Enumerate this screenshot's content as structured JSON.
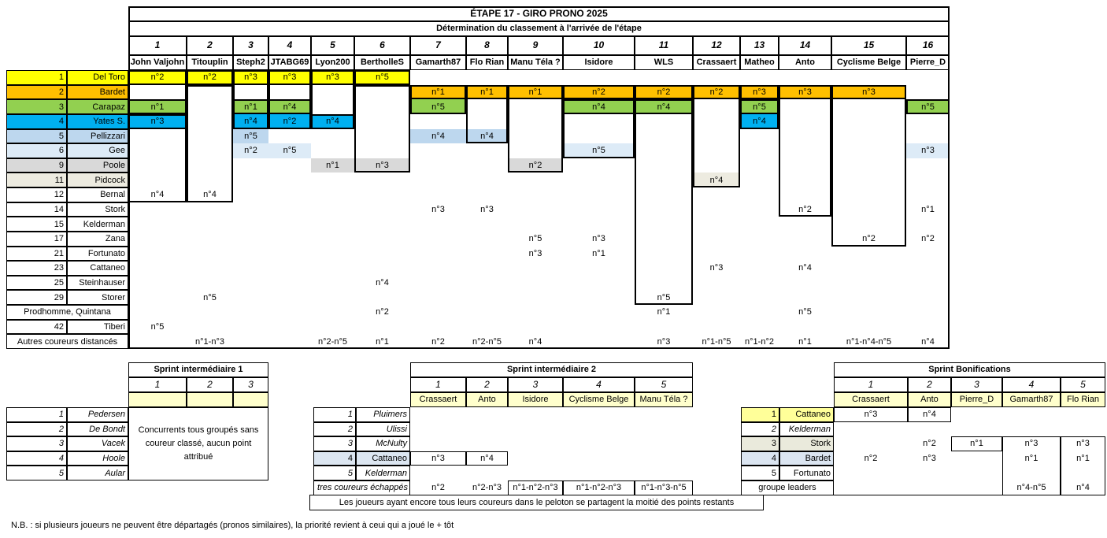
{
  "main": {
    "title": "ÉTAPE 17 - GIRO PRONO 2025",
    "subtitle": "Détermination du classement à l'arrivée de l'étape",
    "columns": [
      {
        "num": "1",
        "player": "John Valjohn"
      },
      {
        "num": "2",
        "player": "Titouplin"
      },
      {
        "num": "3",
        "player": "Steph2"
      },
      {
        "num": "4",
        "player": "JTABG69"
      },
      {
        "num": "5",
        "player": "Lyon200"
      },
      {
        "num": "6",
        "player": "BertholleS"
      },
      {
        "num": "7",
        "player": "Gamarth87"
      },
      {
        "num": "8",
        "player": "Flo Rian"
      },
      {
        "num": "9",
        "player": "Manu Téla ?"
      },
      {
        "num": "10",
        "player": "Isidore"
      },
      {
        "num": "11",
        "player": "WLS"
      },
      {
        "num": "12",
        "player": "Crassaert"
      },
      {
        "num": "13",
        "player": "Matheo"
      },
      {
        "num": "14",
        "player": "Anto"
      },
      {
        "num": "15",
        "player": "Cyclisme Belge"
      },
      {
        "num": "16",
        "player": "Pierre_D"
      }
    ],
    "riders": [
      {
        "rank": "1",
        "name": "Del Toro",
        "color": "#FFFF00"
      },
      {
        "rank": "2",
        "name": "Bardet",
        "color": "#FFC000"
      },
      {
        "rank": "3",
        "name": "Carapaz",
        "color": "#92D050"
      },
      {
        "rank": "4",
        "name": "Yates S.",
        "color": "#00B0F0"
      },
      {
        "rank": "5",
        "name": "Pellizzari",
        "color": "#BDD7EE"
      },
      {
        "rank": "6",
        "name": "Gee",
        "color": "#DDEBF7"
      },
      {
        "rank": "9",
        "name": "Poole",
        "color": "#D9D9D9"
      },
      {
        "rank": "11",
        "name": "Pidcock",
        "color": "#EDEBE0"
      },
      {
        "rank": "12",
        "name": "Bernal",
        "color": ""
      },
      {
        "rank": "14",
        "name": "Stork",
        "color": ""
      },
      {
        "rank": "15",
        "name": "Kelderman",
        "color": ""
      },
      {
        "rank": "17",
        "name": "Zana",
        "color": ""
      },
      {
        "rank": "21",
        "name": "Fortunato",
        "color": ""
      },
      {
        "rank": "23",
        "name": "Cattaneo",
        "color": ""
      },
      {
        "rank": "25",
        "name": "Steinhauser",
        "color": ""
      },
      {
        "rank": "29",
        "name": "Storer",
        "color": ""
      },
      {
        "rank": "",
        "name": "Prodhomme, Quintana",
        "color": "",
        "merged": true
      },
      {
        "rank": "42",
        "name": "Tiberi",
        "color": ""
      },
      {
        "rank": "",
        "name": "Autres coureurs distancés",
        "color": "",
        "merged": true
      }
    ],
    "picks": [
      {
        "c": 1,
        "r": 0,
        "v": "n°2"
      },
      {
        "c": 2,
        "r": 0,
        "v": "n°2"
      },
      {
        "c": 3,
        "r": 0,
        "v": "n°3"
      },
      {
        "c": 4,
        "r": 0,
        "v": "n°3"
      },
      {
        "c": 5,
        "r": 0,
        "v": "n°3"
      },
      {
        "c": 6,
        "r": 0,
        "v": "n°5"
      },
      {
        "c": 7,
        "r": 1,
        "v": "n°1"
      },
      {
        "c": 8,
        "r": 1,
        "v": "n°1"
      },
      {
        "c": 9,
        "r": 1,
        "v": "n°1"
      },
      {
        "c": 10,
        "r": 1,
        "v": "n°2"
      },
      {
        "c": 11,
        "r": 1,
        "v": "n°2"
      },
      {
        "c": 12,
        "r": 1,
        "v": "n°2"
      },
      {
        "c": 13,
        "r": 1,
        "v": "n°3"
      },
      {
        "c": 14,
        "r": 1,
        "v": "n°3"
      },
      {
        "c": 15,
        "r": 1,
        "v": "n°3"
      },
      {
        "c": 1,
        "r": 2,
        "v": "n°1"
      },
      {
        "c": 3,
        "r": 2,
        "v": "n°1"
      },
      {
        "c": 4,
        "r": 2,
        "v": "n°4"
      },
      {
        "c": 7,
        "r": 2,
        "v": "n°5"
      },
      {
        "c": 10,
        "r": 2,
        "v": "n°4"
      },
      {
        "c": 11,
        "r": 2,
        "v": "n°4"
      },
      {
        "c": 13,
        "r": 2,
        "v": "n°5"
      },
      {
        "c": 16,
        "r": 2,
        "v": "n°5"
      },
      {
        "c": 1,
        "r": 3,
        "v": "n°3"
      },
      {
        "c": 3,
        "r": 3,
        "v": "n°4"
      },
      {
        "c": 4,
        "r": 3,
        "v": "n°2"
      },
      {
        "c": 5,
        "r": 3,
        "v": "n°4"
      },
      {
        "c": 13,
        "r": 3,
        "v": "n°4"
      },
      {
        "c": 3,
        "r": 4,
        "v": "n°5"
      },
      {
        "c": 7,
        "r": 4,
        "v": "n°4"
      },
      {
        "c": 8,
        "r": 4,
        "v": "n°4"
      },
      {
        "c": 3,
        "r": 5,
        "v": "n°2"
      },
      {
        "c": 4,
        "r": 5,
        "v": "n°5"
      },
      {
        "c": 10,
        "r": 5,
        "v": "n°5"
      },
      {
        "c": 16,
        "r": 5,
        "v": "n°3"
      },
      {
        "c": 5,
        "r": 6,
        "v": "n°1"
      },
      {
        "c": 6,
        "r": 6,
        "v": "n°3"
      },
      {
        "c": 9,
        "r": 6,
        "v": "n°2"
      },
      {
        "c": 12,
        "r": 7,
        "v": "n°4"
      },
      {
        "c": 1,
        "r": 8,
        "v": "n°4"
      },
      {
        "c": 2,
        "r": 8,
        "v": "n°4"
      },
      {
        "c": 7,
        "r": 9,
        "v": "n°3"
      },
      {
        "c": 8,
        "r": 9,
        "v": "n°3"
      },
      {
        "c": 14,
        "r": 9,
        "v": "n°2"
      },
      {
        "c": 16,
        "r": 9,
        "v": "n°1"
      },
      {
        "c": 9,
        "r": 11,
        "v": "n°5"
      },
      {
        "c": 10,
        "r": 11,
        "v": "n°3"
      },
      {
        "c": 15,
        "r": 11,
        "v": "n°2"
      },
      {
        "c": 16,
        "r": 11,
        "v": "n°2"
      },
      {
        "c": 9,
        "r": 12,
        "v": "n°3"
      },
      {
        "c": 10,
        "r": 12,
        "v": "n°1"
      },
      {
        "c": 12,
        "r": 13,
        "v": "n°3"
      },
      {
        "c": 14,
        "r": 13,
        "v": "n°4"
      },
      {
        "c": 6,
        "r": 14,
        "v": "n°4"
      },
      {
        "c": 2,
        "r": 15,
        "v": "n°5"
      },
      {
        "c": 11,
        "r": 15,
        "v": "n°5"
      },
      {
        "c": 6,
        "r": 16,
        "v": "n°2"
      },
      {
        "c": 11,
        "r": 16,
        "v": "n°1"
      },
      {
        "c": 14,
        "r": 16,
        "v": "n°5"
      },
      {
        "c": 1,
        "r": 17,
        "v": "n°5"
      },
      {
        "c": 2,
        "r": 18,
        "v": "n°1-n°3"
      },
      {
        "c": 5,
        "r": 18,
        "v": "n°2-n°5"
      },
      {
        "c": 6,
        "r": 18,
        "v": "n°1"
      },
      {
        "c": 7,
        "r": 18,
        "v": "n°2"
      },
      {
        "c": 8,
        "r": 18,
        "v": "n°2-n°5"
      },
      {
        "c": 9,
        "r": 18,
        "v": "n°4"
      },
      {
        "c": 11,
        "r": 18,
        "v": "n°3"
      },
      {
        "c": 12,
        "r": 18,
        "v": "n°1-n°5"
      },
      {
        "c": 13,
        "r": 18,
        "v": "n°1-n°2"
      },
      {
        "c": 14,
        "r": 18,
        "v": "n°1"
      },
      {
        "c": 15,
        "r": 18,
        "v": "n°1-n°4-n°5"
      },
      {
        "c": 16,
        "r": 18,
        "v": "n°4"
      }
    ],
    "boxes": [
      {
        "c": 1,
        "r0": 0,
        "r1": 8
      },
      {
        "c": 1,
        "r0": 0,
        "r1": 0
      },
      {
        "c": 1,
        "r0": 2,
        "r1": 2
      },
      {
        "c": 1,
        "r0": 3,
        "r1": 3
      },
      {
        "c": 2,
        "r0": 0,
        "r1": 0
      },
      {
        "c": 2,
        "r0": 1,
        "r1": 8
      },
      {
        "c": 3,
        "r0": 0,
        "r1": 3
      },
      {
        "c": 3,
        "r0": 0,
        "r1": 0
      },
      {
        "c": 3,
        "r0": 2,
        "r1": 2
      },
      {
        "c": 4,
        "r0": 0,
        "r1": 3
      },
      {
        "c": 4,
        "r0": 0,
        "r1": 0
      },
      {
        "c": 4,
        "r0": 2,
        "r1": 2
      },
      {
        "c": 5,
        "r0": 0,
        "r1": 3
      },
      {
        "c": 5,
        "r0": 0,
        "r1": 0
      },
      {
        "c": 5,
        "r0": 3,
        "r1": 3
      },
      {
        "c": 6,
        "r0": 0,
        "r1": 0
      },
      {
        "c": 6,
        "r0": 1,
        "r1": 6
      },
      {
        "c": 7,
        "r0": 1,
        "r1": 2
      },
      {
        "c": 7,
        "r0": 1,
        "r1": 1
      },
      {
        "c": 8,
        "r0": 1,
        "r1": 4
      },
      {
        "c": 8,
        "r0": 1,
        "r1": 1
      },
      {
        "c": 9,
        "r0": 1,
        "r1": 6
      },
      {
        "c": 9,
        "r0": 1,
        "r1": 1
      },
      {
        "c": 10,
        "r0": 1,
        "r1": 5
      },
      {
        "c": 10,
        "r0": 1,
        "r1": 1
      },
      {
        "c": 10,
        "r0": 2,
        "r1": 2
      },
      {
        "c": 11,
        "r0": 1,
        "r1": 15
      },
      {
        "c": 11,
        "r0": 1,
        "r1": 1
      },
      {
        "c": 11,
        "r0": 2,
        "r1": 2
      },
      {
        "c": 12,
        "r0": 1,
        "r1": 7
      },
      {
        "c": 12,
        "r0": 1,
        "r1": 1
      },
      {
        "c": 13,
        "r0": 1,
        "r1": 3
      },
      {
        "c": 13,
        "r0": 1,
        "r1": 1
      },
      {
        "c": 13,
        "r0": 2,
        "r1": 2
      },
      {
        "c": 14,
        "r0": 1,
        "r1": 9
      },
      {
        "c": 14,
        "r0": 1,
        "r1": 1
      },
      {
        "c": 15,
        "r0": 1,
        "r1": 11
      },
      {
        "c": 15,
        "r0": 1,
        "r1": 1
      },
      {
        "c": 16,
        "r0": 2,
        "r1": 2
      }
    ]
  },
  "sprint1": {
    "title": "Sprint intermédiaire 1",
    "nums": [
      "1",
      "2",
      "3"
    ],
    "riders": [
      {
        "rank": "1",
        "name": "Pedersen",
        "italic": true
      },
      {
        "rank": "2",
        "name": "De Bondt",
        "italic": true
      },
      {
        "rank": "3",
        "name": "Vacek",
        "italic": true
      },
      {
        "rank": "4",
        "name": "Hoole",
        "italic": true
      },
      {
        "rank": "5",
        "name": "Aular",
        "italic": true
      }
    ],
    "message": "Concurrents tous groupés sans coureur classé, aucun point attribué"
  },
  "sprint2": {
    "title": "Sprint intermédiaire 2",
    "nums": [
      "1",
      "2",
      "3",
      "4",
      "5"
    ],
    "players": [
      "Crassaert",
      "Anto",
      "Isidore",
      "Cyclisme Belge",
      "Manu Téla ?"
    ],
    "riders": [
      {
        "rank": "1",
        "name": "Pluimers",
        "italic": true
      },
      {
        "rank": "2",
        "name": "Ulissi",
        "italic": true
      },
      {
        "rank": "3",
        "name": "McNulty",
        "italic": true
      },
      {
        "rank": "4",
        "name": "Cattaneo",
        "color": "#DCE6F1"
      },
      {
        "rank": "5",
        "name": "Kelderman",
        "italic": true
      }
    ],
    "picks": [
      {
        "r": 3,
        "c": 0,
        "v": "n°3",
        "box": true
      },
      {
        "r": 3,
        "c": 1,
        "v": "n°4",
        "box": true
      }
    ],
    "escapees_label": "tres coureurs échappés",
    "escapees": [
      {
        "v": "n°2"
      },
      {
        "v": "n°2-n°3"
      },
      {
        "v": "n°1-n°2-n°3",
        "box": true
      },
      {
        "v": "n°1-n°2-n°3",
        "box": true
      },
      {
        "v": "n°1-n°3-n°5",
        "box": true
      }
    ],
    "note": "Les joueurs ayant encore tous leurs coureurs dans le peloton se partagent la moitié des points restants"
  },
  "bonif": {
    "title": "Sprint Bonifications",
    "nums": [
      "1",
      "2",
      "3",
      "4",
      "5"
    ],
    "players": [
      "Crassaert",
      "Anto",
      "Pierre_D",
      "Gamarth87",
      "Flo Rian"
    ],
    "riders": [
      {
        "rank": "1",
        "name": "Cattaneo",
        "color": "#FFFF99"
      },
      {
        "rank": "2",
        "name": "Kelderman",
        "italic": true
      },
      {
        "rank": "3",
        "name": "Stork",
        "color": "#EAEADC"
      },
      {
        "rank": "4",
        "name": "Bardet",
        "color": "#DBE5F1"
      },
      {
        "rank": "5",
        "name": "Fortunato"
      }
    ],
    "picks": [
      {
        "r": 0,
        "c": 0,
        "v": "n°3",
        "box": true
      },
      {
        "r": 0,
        "c": 1,
        "v": "n°4",
        "box": true
      },
      {
        "r": 2,
        "c": 1,
        "v": "n°2"
      },
      {
        "r": 2,
        "c": 2,
        "v": "n°1",
        "box": true
      },
      {
        "r": 2,
        "c": 3,
        "v": "n°3"
      },
      {
        "r": 2,
        "c": 4,
        "v": "n°3"
      },
      {
        "r": 3,
        "c": 0,
        "v": "n°2"
      },
      {
        "r": 3,
        "c": 1,
        "v": "n°3"
      },
      {
        "r": 3,
        "c": 3,
        "v": "n°1"
      },
      {
        "r": 3,
        "c": 4,
        "v": "n°1"
      }
    ],
    "leaders_label": "groupe leaders",
    "leaders": [
      {
        "c": 3,
        "v": "n°4-n°5"
      },
      {
        "c": 4,
        "v": "n°4"
      }
    ],
    "col_boxes": [
      3,
      4
    ],
    "header_fill": "#FFFFCC"
  },
  "footnote": "N.B. : si plusieurs joueurs ne peuvent être départagés (pronos similaires), la priorité revient à ceui qui a joué le + tôt"
}
